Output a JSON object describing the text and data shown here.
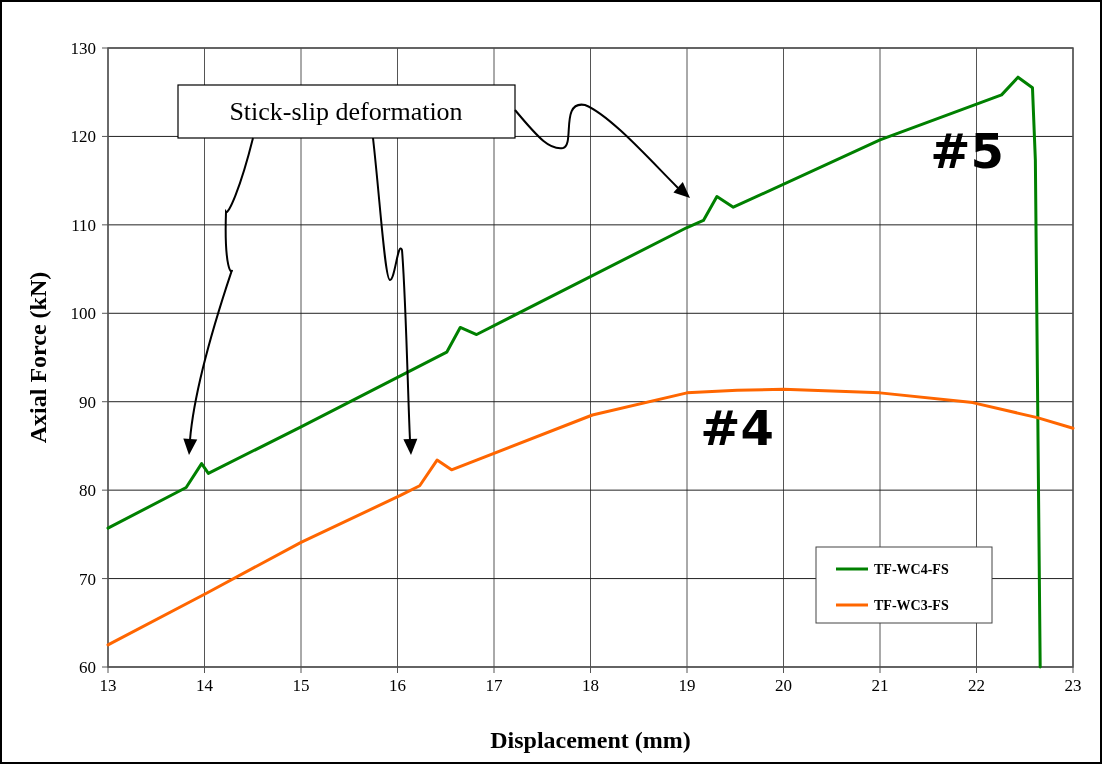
{
  "chart_data": {
    "type": "line",
    "xlabel": "Displacement (mm)",
    "ylabel": "Axial Force (kN)",
    "xlim": [
      13,
      23
    ],
    "xticks": [
      13,
      14,
      15,
      16,
      17,
      18,
      19,
      20,
      21,
      22,
      23
    ],
    "ylim": [
      60,
      130
    ],
    "yticks": [
      60,
      70,
      80,
      90,
      100,
      110,
      120,
      130
    ],
    "grid": true,
    "legend": "bottom right",
    "marker": "none",
    "line_style": "solid",
    "series": [
      {
        "name": "TF-WC4-FS",
        "color": "#008000",
        "x": [
          13,
          13.81,
          13.97,
          14.04,
          14.99,
          16.51,
          16.65,
          16.82,
          19.0,
          19.17,
          19.31,
          19.48,
          21.0,
          22.26,
          22.43,
          22.58,
          22.61,
          22.66
        ],
        "values": [
          75.7,
          80.3,
          83.0,
          81.9,
          87.1,
          95.6,
          98.4,
          97.6,
          109.7,
          110.5,
          113.2,
          112.0,
          119.6,
          124.7,
          126.7,
          125.5,
          117.3,
          60
        ]
      },
      {
        "name": "TF-WC3-FS",
        "color": "#ff6600",
        "x": [
          13,
          14.03,
          15,
          16.03,
          16.23,
          16.41,
          16.56,
          18.02,
          19.0,
          19.52,
          20.0,
          21.0,
          21.96,
          22.63,
          23
        ],
        "values": [
          62.5,
          68.4,
          74.1,
          79.4,
          80.5,
          83.4,
          82.3,
          88.5,
          91.0,
          91.3,
          91.4,
          91.0,
          89.9,
          88.2,
          87.0
        ]
      }
    ],
    "annotations": [
      "Stick-slip deformation",
      "#5",
      "#4"
    ]
  }
}
